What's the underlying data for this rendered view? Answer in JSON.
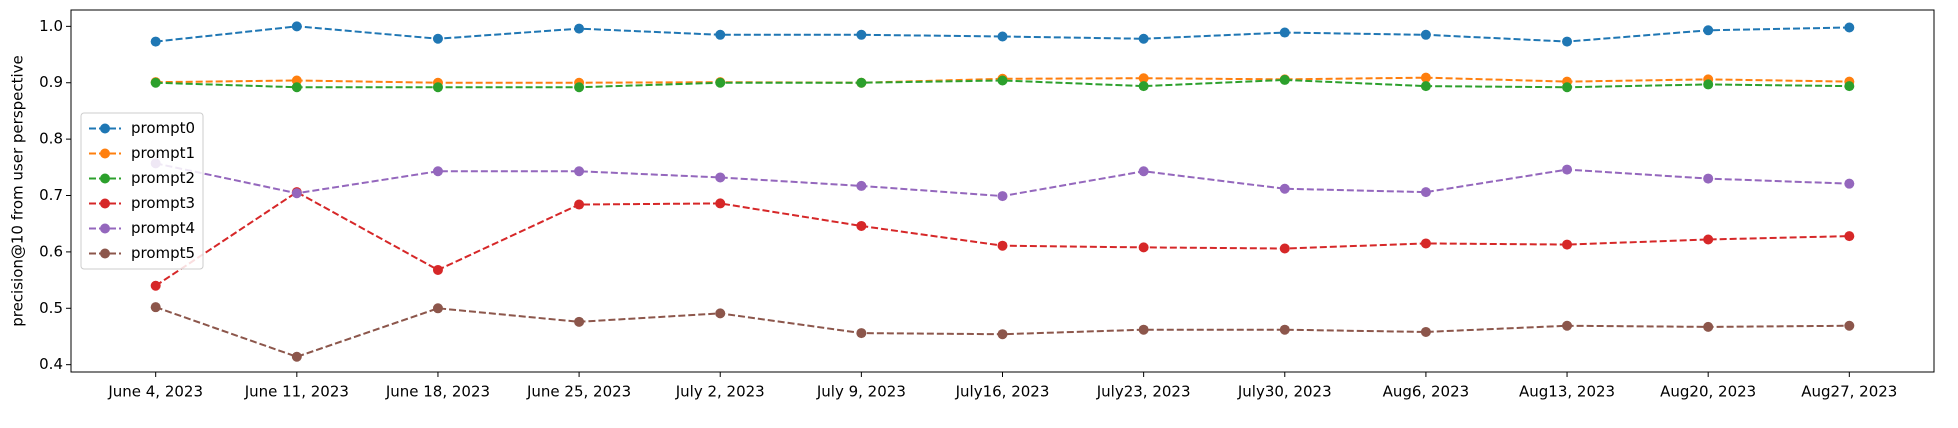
{
  "chart_data": {
    "type": "line",
    "ylabel": "precision@10 from user perspective",
    "categories": [
      "June 4, 2023",
      "June 11, 2023",
      "June 18, 2023",
      "June 25, 2023",
      "July 2, 2023",
      "July 9, 2023",
      "July16, 2023",
      "July23, 2023",
      "July30, 2023",
      "Aug6, 2023",
      "Aug13, 2023",
      "Aug20, 2023",
      "Aug27, 2023"
    ],
    "series": [
      {
        "name": "prompt0",
        "color": "#1f77b4",
        "values": [
          0.973,
          1.0,
          0.978,
          0.996,
          0.985,
          0.985,
          0.982,
          0.978,
          0.989,
          0.985,
          0.973,
          0.993,
          0.998
        ]
      },
      {
        "name": "prompt1",
        "color": "#ff7f0e",
        "values": [
          0.901,
          0.904,
          0.9,
          0.9,
          0.901,
          0.9,
          0.907,
          0.908,
          0.906,
          0.909,
          0.902,
          0.906,
          0.902
        ]
      },
      {
        "name": "prompt2",
        "color": "#2ca02c",
        "values": [
          0.9,
          0.892,
          0.892,
          0.892,
          0.9,
          0.9,
          0.904,
          0.894,
          0.905,
          0.894,
          0.892,
          0.897,
          0.894
        ]
      },
      {
        "name": "prompt3",
        "color": "#d62728",
        "values": [
          0.54,
          0.706,
          0.568,
          0.684,
          0.686,
          0.646,
          0.611,
          0.608,
          0.606,
          0.615,
          0.613,
          0.622,
          0.628
        ]
      },
      {
        "name": "prompt4",
        "color": "#9467bd",
        "values": [
          0.757,
          0.704,
          0.743,
          0.743,
          0.732,
          0.717,
          0.699,
          0.743,
          0.712,
          0.706,
          0.746,
          0.73,
          0.721
        ]
      },
      {
        "name": "prompt5",
        "color": "#8c564b",
        "values": [
          0.502,
          0.414,
          0.5,
          0.476,
          0.491,
          0.456,
          0.454,
          0.462,
          0.462,
          0.458,
          0.469,
          0.467,
          0.469
        ]
      }
    ],
    "ylim": [
      0.387,
      1.029
    ],
    "yticks": [
      0.4,
      0.5,
      0.6,
      0.7,
      0.8,
      0.9,
      {
        "value": 1,
        "label": "1.0"
      }
    ],
    "grid": false,
    "legend": "center left",
    "linestyle": "dashed"
  }
}
